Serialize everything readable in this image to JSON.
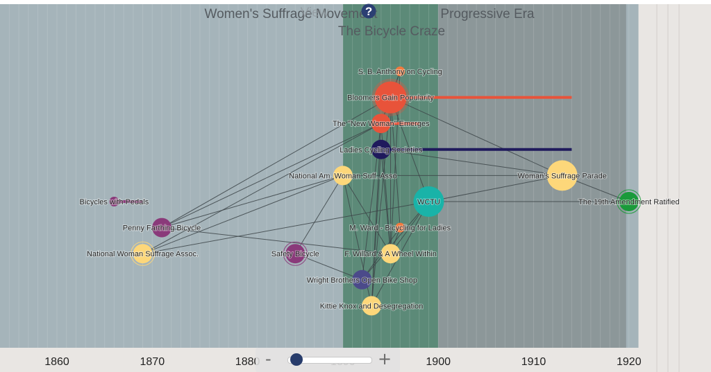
{
  "timeline": {
    "periods": [
      {
        "label": "Women's Suffrage Movement",
        "start": 1848,
        "end": 1920,
        "color": "#a5b4ba"
      },
      {
        "label": "The Bicycle Craze",
        "start": 1890,
        "end": 1900,
        "color": "#5c8a78"
      },
      {
        "label": "Progressive Era",
        "start": 1900,
        "end": 1920,
        "color": "#8c9799"
      }
    ],
    "overlay_text": "View",
    "help_symbol": "?",
    "axis_ticks": [
      "1860",
      "1870",
      "1880",
      "1890",
      "1900",
      "1910",
      "1920"
    ],
    "events": [
      {
        "id": "anthony",
        "label": "S. B. Anthony on Cycling",
        "year": 1896,
        "lane": 1,
        "color": "#f27a3d",
        "size": "s",
        "bar_to": null
      },
      {
        "id": "bloomers",
        "label": "Bloomers Gain Popularity",
        "year": 1895,
        "lane": 2,
        "color": "#e8533a",
        "size": "xl",
        "bar_to": 1914
      },
      {
        "id": "newwoman",
        "label": "The \"New Woman\" Emerges",
        "year": 1894,
        "lane": 3,
        "color": "#e8533a",
        "size": "m",
        "bar_to": 1898
      },
      {
        "id": "ladies",
        "label": "Ladies Cycling Societies",
        "year": 1894,
        "lane": 4,
        "color": "#1f1a5c",
        "size": "m",
        "bar_to": 1914
      },
      {
        "id": "nawsa",
        "label": "National Am. Woman Suff. Asso",
        "year": 1890,
        "lane": 5,
        "color": "#fdd77a",
        "size": "m",
        "bar_to": null
      },
      {
        "id": "parade",
        "label": "Woman's Suffrage Parade",
        "year": 1913,
        "lane": 5,
        "color": "#fdd77a",
        "size": "l",
        "bar_to": null
      },
      {
        "id": "pedals",
        "label": "Bicycles with Pedals",
        "year": 1866,
        "lane": 6,
        "color": "#8a3a7a",
        "size": "s",
        "bar_to": 1869
      },
      {
        "id": "wctu",
        "label": "WCTU",
        "year": 1899,
        "lane": 6,
        "color": "#19b3a8",
        "size": "l",
        "bar_to": null
      },
      {
        "id": "ratified",
        "label": "The 19th Amendment Ratified",
        "year": 1920,
        "lane": 6,
        "color": "#1a9a3a",
        "size": "m",
        "ring": true,
        "bar_to": null
      },
      {
        "id": "penny",
        "label": "Penny Farthing Bicycle",
        "year": 1871,
        "lane": 7,
        "color": "#8a3a7a",
        "size": "m",
        "bar_to": null
      },
      {
        "id": "ward",
        "label": "M. Ward - Bicycling for Ladies",
        "year": 1896,
        "lane": 7,
        "color": "#f27a3d",
        "size": "s",
        "bar_to": null
      },
      {
        "id": "nwsa",
        "label": "National Woman Suffrage Assoc.",
        "year": 1869,
        "lane": 8,
        "color": "#fdd77a",
        "size": "m",
        "ring": true,
        "bar_to": null
      },
      {
        "id": "safety",
        "label": "Safety Bicycle",
        "year": 1885,
        "lane": 8,
        "color": "#8a3a7a",
        "size": "m",
        "ring": true,
        "bar_to": null
      },
      {
        "id": "willard",
        "label": "F. Willard & A Wheel Within",
        "year": 1895,
        "lane": 8,
        "color": "#fdd77a",
        "size": "m",
        "bar_to": null
      },
      {
        "id": "wright",
        "label": "Wright Brothers Open Bike Shop",
        "year": 1892,
        "lane": 9,
        "color": "#4b4a8a",
        "size": "m",
        "bar_to": null
      },
      {
        "id": "kittie",
        "label": "Kittie Knox and Desegregation",
        "year": 1893,
        "lane": 10,
        "color": "#fdd77a",
        "size": "m",
        "bar_to": null
      }
    ],
    "links": [
      [
        "penny",
        "bloomers"
      ],
      [
        "penny",
        "newwoman"
      ],
      [
        "penny",
        "nawsa"
      ],
      [
        "penny",
        "willard"
      ],
      [
        "nwsa",
        "newwoman"
      ],
      [
        "nwsa",
        "wctu"
      ],
      [
        "nwsa",
        "nawsa"
      ],
      [
        "safety",
        "nawsa"
      ],
      [
        "safety",
        "wright"
      ],
      [
        "bloomers",
        "parade"
      ],
      [
        "bloomers",
        "willard"
      ],
      [
        "bloomers",
        "kittie"
      ],
      [
        "bloomers",
        "ward"
      ],
      [
        "bloomers",
        "wctu"
      ],
      [
        "bloomers",
        "anthony"
      ],
      [
        "bloomers",
        "newwoman"
      ],
      [
        "anthony",
        "willard"
      ],
      [
        "anthony",
        "newwoman"
      ],
      [
        "ladies",
        "parade"
      ],
      [
        "ladies",
        "willard"
      ],
      [
        "ladies",
        "kittie"
      ],
      [
        "newwoman",
        "willard"
      ],
      [
        "newwoman",
        "wright"
      ],
      [
        "newwoman",
        "kittie"
      ],
      [
        "nawsa",
        "parade"
      ],
      [
        "nawsa",
        "kittie"
      ],
      [
        "nawsa",
        "willard"
      ],
      [
        "wctu",
        "parade"
      ],
      [
        "wctu",
        "ratified"
      ],
      [
        "wctu",
        "willard"
      ],
      [
        "wctu",
        "wright"
      ],
      [
        "wctu",
        "kittie"
      ],
      [
        "ward",
        "willard"
      ],
      [
        "ward",
        "wright"
      ],
      [
        "parade",
        "ratified"
      ]
    ]
  },
  "zoom": {
    "minus": "-",
    "plus": "+",
    "level": 0.1
  }
}
